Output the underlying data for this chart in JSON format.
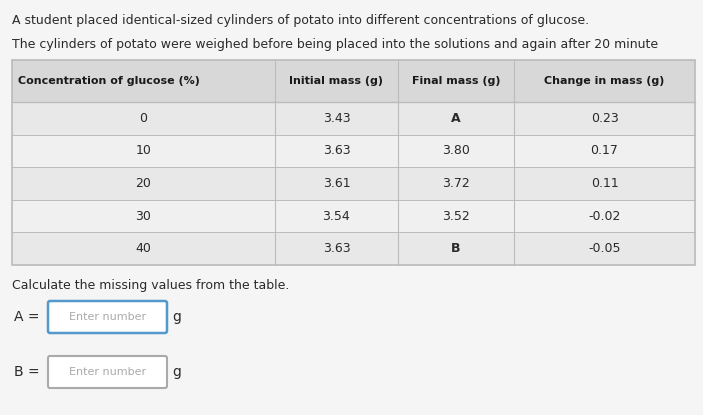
{
  "title_line1": "A student placed identical-sized cylinders of potato into different concentrations of glucose.",
  "title_line2": "The cylinders of potato were weighed before being placed into the solutions and again after 20 minute",
  "table_headers": [
    "Concentration of glucose (%)",
    "Initial mass (g)",
    "Final mass (g)",
    "Change in mass (g)"
  ],
  "rows": [
    [
      "0",
      "3.43",
      "A",
      "0.23"
    ],
    [
      "10",
      "3.63",
      "3.80",
      "0.17"
    ],
    [
      "20",
      "3.61",
      "3.72",
      "0.11"
    ],
    [
      "30",
      "3.54",
      "3.52",
      "-0.02"
    ],
    [
      "40",
      "3.63",
      "B",
      "-0.05"
    ]
  ],
  "calc_text": "Calculate the missing values from the table.",
  "label_A": "A =",
  "label_B": "B =",
  "placeholder_text": "Enter number",
  "unit": "g",
  "bg_color": "#f5f5f5",
  "header_bg": "#d8d8d8",
  "row_bg_even": "#e8e8e8",
  "row_bg_odd": "#f0f0f0",
  "table_line_color": "#bbbbbb",
  "text_color": "#2a2a2a",
  "header_text_color": "#1a1a1a",
  "input_border_color_A": "#5599cc",
  "input_border_color_B": "#aaaaaa",
  "input_bg": "#ffffff",
  "placeholder_color": "#aaaaaa",
  "title_color": "#2a2a2a"
}
